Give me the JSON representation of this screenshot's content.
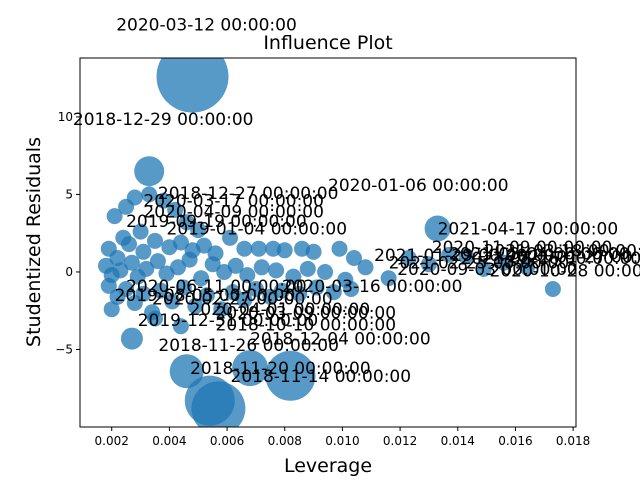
{
  "chart_data": {
    "type": "scatter",
    "title": "Influence Plot",
    "xlabel": "Leverage",
    "ylabel": "Studentized Residuals",
    "xlim": [
      0.0009,
      0.0181
    ],
    "ylim": [
      -10.0,
      13.8
    ],
    "xticks": [
      0.002,
      0.004,
      0.006,
      0.008,
      0.01,
      0.012,
      0.014,
      0.016,
      0.018
    ],
    "xtick_labels": [
      "0.002",
      "0.004",
      "0.006",
      "0.008",
      "0.010",
      "0.012",
      "0.014",
      "0.016",
      "0.018"
    ],
    "yticks": [
      -5,
      0,
      5,
      10
    ],
    "ytick_labels": [
      "−5",
      "0",
      "5",
      "10"
    ],
    "grid": false,
    "marker_color": "#1f77b4",
    "points": [
      {
        "x": 0.0048,
        "y": 12.6,
        "size": 36
      },
      {
        "x": 0.0033,
        "y": 6.5,
        "size": 15
      },
      {
        "x": 0.0133,
        "y": 2.8,
        "size": 13
      },
      {
        "x": 0.0057,
        "y": -8.8,
        "size": 27
      },
      {
        "x": 0.0054,
        "y": -8.3,
        "size": 25
      },
      {
        "x": 0.0068,
        "y": -6.2,
        "size": 18
      },
      {
        "x": 0.0082,
        "y": -6.7,
        "size": 25
      },
      {
        "x": 0.0046,
        "y": -6.4,
        "size": 17
      },
      {
        "x": 0.0027,
        "y": -4.3,
        "size": 11
      },
      {
        "x": 0.0173,
        "y": -1.1,
        "size": 8
      },
      {
        "x": 0.0021,
        "y": 3.6,
        "size": 8
      },
      {
        "x": 0.0025,
        "y": 4.2,
        "size": 8
      },
      {
        "x": 0.0028,
        "y": 4.8,
        "size": 8
      },
      {
        "x": 0.0033,
        "y": 5.0,
        "size": 8
      },
      {
        "x": 0.0038,
        "y": 4.6,
        "size": 8
      },
      {
        "x": 0.0042,
        "y": 4.0,
        "size": 8
      },
      {
        "x": 0.0046,
        "y": 3.2,
        "size": 8
      },
      {
        "x": 0.005,
        "y": 2.7,
        "size": 8
      },
      {
        "x": 0.003,
        "y": 2.6,
        "size": 8
      },
      {
        "x": 0.0024,
        "y": 2.2,
        "size": 8
      },
      {
        "x": 0.0019,
        "y": 1.5,
        "size": 8
      },
      {
        "x": 0.0022,
        "y": 0.9,
        "size": 8
      },
      {
        "x": 0.0026,
        "y": 1.8,
        "size": 8
      },
      {
        "x": 0.0031,
        "y": 1.3,
        "size": 8
      },
      {
        "x": 0.0035,
        "y": 2.0,
        "size": 8
      },
      {
        "x": 0.004,
        "y": 1.6,
        "size": 8
      },
      {
        "x": 0.0044,
        "y": 1.9,
        "size": 8
      },
      {
        "x": 0.0048,
        "y": 1.4,
        "size": 8
      },
      {
        "x": 0.0052,
        "y": 1.7,
        "size": 8
      },
      {
        "x": 0.0056,
        "y": 1.2,
        "size": 8
      },
      {
        "x": 0.0061,
        "y": 2.2,
        "size": 8
      },
      {
        "x": 0.0066,
        "y": 1.5,
        "size": 8
      },
      {
        "x": 0.0071,
        "y": 1.5,
        "size": 8
      },
      {
        "x": 0.0076,
        "y": 1.5,
        "size": 8
      },
      {
        "x": 0.008,
        "y": 1.4,
        "size": 8
      },
      {
        "x": 0.0086,
        "y": 1.5,
        "size": 8
      },
      {
        "x": 0.009,
        "y": 1.3,
        "size": 8
      },
      {
        "x": 0.0099,
        "y": 1.5,
        "size": 8
      },
      {
        "x": 0.0104,
        "y": 0.9,
        "size": 8
      },
      {
        "x": 0.0018,
        "y": 0.4,
        "size": 8
      },
      {
        "x": 0.002,
        "y": -0.2,
        "size": 8
      },
      {
        "x": 0.0023,
        "y": 0.1,
        "size": 8
      },
      {
        "x": 0.0027,
        "y": 0.6,
        "size": 8
      },
      {
        "x": 0.0029,
        "y": -0.3,
        "size": 8
      },
      {
        "x": 0.0032,
        "y": 0.2,
        "size": 8
      },
      {
        "x": 0.0036,
        "y": 0.7,
        "size": 8
      },
      {
        "x": 0.0039,
        "y": -0.1,
        "size": 8
      },
      {
        "x": 0.0043,
        "y": 0.3,
        "size": 8
      },
      {
        "x": 0.0047,
        "y": 0.8,
        "size": 8
      },
      {
        "x": 0.0051,
        "y": -0.4,
        "size": 8
      },
      {
        "x": 0.0055,
        "y": 0.5,
        "size": 8
      },
      {
        "x": 0.0059,
        "y": 0.0,
        "size": 8
      },
      {
        "x": 0.0063,
        "y": 0.4,
        "size": 8
      },
      {
        "x": 0.0067,
        "y": -0.2,
        "size": 8
      },
      {
        "x": 0.0072,
        "y": 0.3,
        "size": 8
      },
      {
        "x": 0.0077,
        "y": 0.1,
        "size": 8
      },
      {
        "x": 0.0083,
        "y": -0.3,
        "size": 8
      },
      {
        "x": 0.0088,
        "y": 0.2,
        "size": 8
      },
      {
        "x": 0.0094,
        "y": 0.0,
        "size": 8
      },
      {
        "x": 0.0101,
        "y": -0.5,
        "size": 8
      },
      {
        "x": 0.0108,
        "y": 0.3,
        "size": 8
      },
      {
        "x": 0.0116,
        "y": -0.4,
        "size": 8
      },
      {
        "x": 0.0123,
        "y": 0.9,
        "size": 8
      },
      {
        "x": 0.013,
        "y": 0.5,
        "size": 8
      },
      {
        "x": 0.0137,
        "y": 1.1,
        "size": 8
      },
      {
        "x": 0.0143,
        "y": 1.0,
        "size": 8
      },
      {
        "x": 0.0149,
        "y": 0.2,
        "size": 8
      },
      {
        "x": 0.0156,
        "y": 0.6,
        "size": 8
      },
      {
        "x": 0.0164,
        "y": 0.3,
        "size": 8
      },
      {
        "x": 0.0019,
        "y": -0.9,
        "size": 8
      },
      {
        "x": 0.0022,
        "y": -1.6,
        "size": 8
      },
      {
        "x": 0.0025,
        "y": -1.1,
        "size": 8
      },
      {
        "x": 0.0028,
        "y": -2.0,
        "size": 8
      },
      {
        "x": 0.0031,
        "y": -1.4,
        "size": 8
      },
      {
        "x": 0.0034,
        "y": -2.6,
        "size": 8
      },
      {
        "x": 0.0037,
        "y": -1.2,
        "size": 8
      },
      {
        "x": 0.0041,
        "y": -1.9,
        "size": 8
      },
      {
        "x": 0.0045,
        "y": -1.0,
        "size": 8
      },
      {
        "x": 0.0049,
        "y": -2.2,
        "size": 8
      },
      {
        "x": 0.0053,
        "y": -1.5,
        "size": 8
      },
      {
        "x": 0.0058,
        "y": -2.4,
        "size": 8
      },
      {
        "x": 0.0062,
        "y": -1.3,
        "size": 8
      },
      {
        "x": 0.0066,
        "y": -1.8,
        "size": 8
      },
      {
        "x": 0.007,
        "y": -1.1,
        "size": 8
      },
      {
        "x": 0.0075,
        "y": -1.6,
        "size": 8
      },
      {
        "x": 0.0079,
        "y": -1.2,
        "size": 8
      },
      {
        "x": 0.0085,
        "y": -1.4,
        "size": 8
      },
      {
        "x": 0.0091,
        "y": -1.0,
        "size": 8
      },
      {
        "x": 0.0097,
        "y": -1.3,
        "size": 8
      },
      {
        "x": 0.0103,
        "y": -1.1,
        "size": 8
      },
      {
        "x": 0.002,
        "y": -2.4,
        "size": 8
      },
      {
        "x": 0.0035,
        "y": -3.0,
        "size": 8
      },
      {
        "x": 0.0044,
        "y": -3.5,
        "size": 8
      }
    ],
    "annotations": [
      {
        "text": "2020-03-12 00:00:00",
        "x": 0.0048,
        "y": 12.6,
        "anchor": "above"
      },
      {
        "text": "2018-12-29 00:00:00",
        "x": 0.0033,
        "y": 6.5,
        "anchor": "above"
      },
      {
        "text": "2021-04-17 00:00:00",
        "x": 0.0133,
        "y": 2.8,
        "anchor": "right"
      },
      {
        "text": "2018-11-20 00:00:00",
        "x": 0.0068,
        "y": -6.2,
        "anchor": "left"
      },
      {
        "text": "2018-11-14 00:00:00",
        "x": 0.0082,
        "y": -6.7,
        "anchor": "left"
      },
      {
        "text": "2018-11-26 00:00:00",
        "x": 0.0057,
        "y": -4.7,
        "anchor": "left"
      },
      {
        "text": "2018-12-27 00:00:00",
        "x": 0.0036,
        "y": 5.1,
        "anchor": "right"
      },
      {
        "text": "2019-12-31 00:00:00",
        "x": 0.0029,
        "y": -3.1,
        "anchor": "right"
      },
      {
        "text": "2020-01-06 00:00:00",
        "x": 0.0095,
        "y": 5.6,
        "anchor": "right"
      },
      {
        "text": "2020-03-17 00:00:00",
        "x": 0.0031,
        "y": 4.6,
        "anchor": "right"
      },
      {
        "text": "2020-04-09 00:00:00",
        "x": 0.0031,
        "y": 3.9,
        "anchor": "right"
      },
      {
        "text": "2019-09-19 00:00:00",
        "x": 0.0025,
        "y": 3.3,
        "anchor": "right"
      },
      {
        "text": "2019-01-04 00:00:00",
        "x": 0.0039,
        "y": 2.8,
        "anchor": "right"
      },
      {
        "text": "2020-06-11 00:00:00",
        "x": 0.0025,
        "y": -0.9,
        "anchor": "right"
      },
      {
        "text": "2019-08-05 00:00:00",
        "x": 0.0021,
        "y": -1.5,
        "anchor": "right"
      },
      {
        "text": "2020-02-27 00:00:00",
        "x": 0.0034,
        "y": -1.7,
        "anchor": "right"
      },
      {
        "text": "2020-04-01 00:00:00",
        "x": 0.0047,
        "y": -2.4,
        "anchor": "right"
      },
      {
        "text": "2020-03-09 00:00:00",
        "x": 0.0056,
        "y": -2.6,
        "anchor": "right"
      },
      {
        "text": "2018-10-10 00:00:00",
        "x": 0.0056,
        "y": -3.4,
        "anchor": "right"
      },
      {
        "text": "2018-12-04 00:00:00",
        "x": 0.0068,
        "y": -4.3,
        "anchor": "right"
      },
      {
        "text": "2020-03-16 00:00:00",
        "x": 0.0079,
        "y": -0.9,
        "anchor": "right"
      },
      {
        "text": "2021-01-29 00:00:00",
        "x": 0.0111,
        "y": 1.1,
        "anchor": "right"
      },
      {
        "text": "2021-02-25 00:00:00",
        "x": 0.0116,
        "y": 0.6,
        "anchor": "right"
      },
      {
        "text": "2020-11-09 00:00:00",
        "x": 0.0131,
        "y": 1.6,
        "anchor": "right"
      },
      {
        "text": "2021-03-04 00:00:00",
        "x": 0.0137,
        "y": 1.2,
        "anchor": "right"
      },
      {
        "text": "2021-02-26 00:00:00",
        "x": 0.0141,
        "y": 0.9,
        "anchor": "right"
      },
      {
        "text": "2021-03-18 00:00:00",
        "x": 0.0149,
        "y": 1.4,
        "anchor": "right"
      },
      {
        "text": "2021-01-27 00:00:00",
        "x": 0.0157,
        "y": 1.0,
        "anchor": "right"
      },
      {
        "text": "2020-09-03 00:00:00",
        "x": 0.0119,
        "y": 0.2,
        "anchor": "right"
      },
      {
        "text": "2020-10-28 00:00:00",
        "x": 0.0151,
        "y": 0.1,
        "anchor": "right"
      }
    ]
  }
}
